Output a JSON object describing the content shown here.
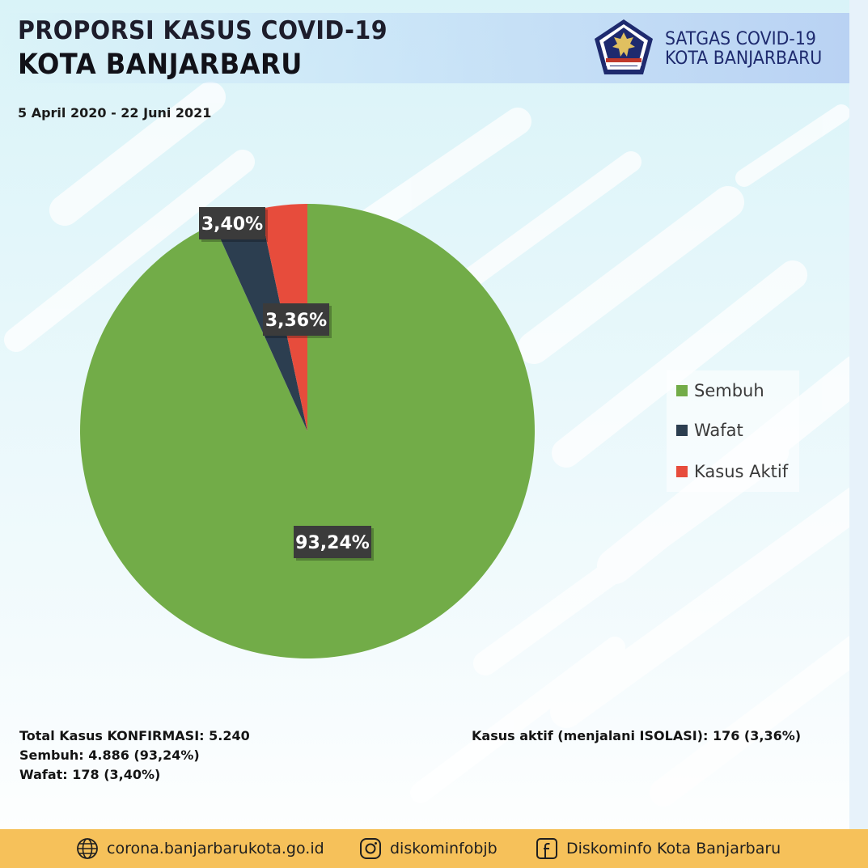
{
  "header": {
    "title_line1": "PROPORSI KASUS COVID-19",
    "title_line2": "KOTA BANJARBARU",
    "org_line1": "SATGAS COVID-19",
    "org_line2": "KOTA BANJARBARU",
    "emblem_icon": "garuda-emblem-icon",
    "date_range": "5 April 2020 - 22 Juni 2021"
  },
  "chart_data": {
    "type": "pie",
    "categories": [
      "Sembuh",
      "Wafat",
      "Kasus Aktif"
    ],
    "values": [
      93.24,
      3.4,
      3.36
    ],
    "data_labels": [
      "93,24%",
      "3,40%",
      "3,36%"
    ],
    "colors": [
      "#72ac48",
      "#2c3e50",
      "#e74c3c"
    ],
    "legend_placement": "right"
  },
  "stats": {
    "total": "Total Kasus KONFIRMASI: 5.240",
    "sembuh": "Sembuh: 4.886 (93,24%)",
    "wafat": "Wafat: 178 (3,40%)",
    "aktif": "Kasus aktif (menjalani ISOLASI): 176 (3,36%)"
  },
  "footer": {
    "website": "corona.banjarbarukota.go.id",
    "instagram": "diskominfobjb",
    "facebook": "Diskominfo Kota Banjarbaru",
    "icons": [
      "globe-icon",
      "instagram-icon",
      "facebook-icon"
    ]
  }
}
